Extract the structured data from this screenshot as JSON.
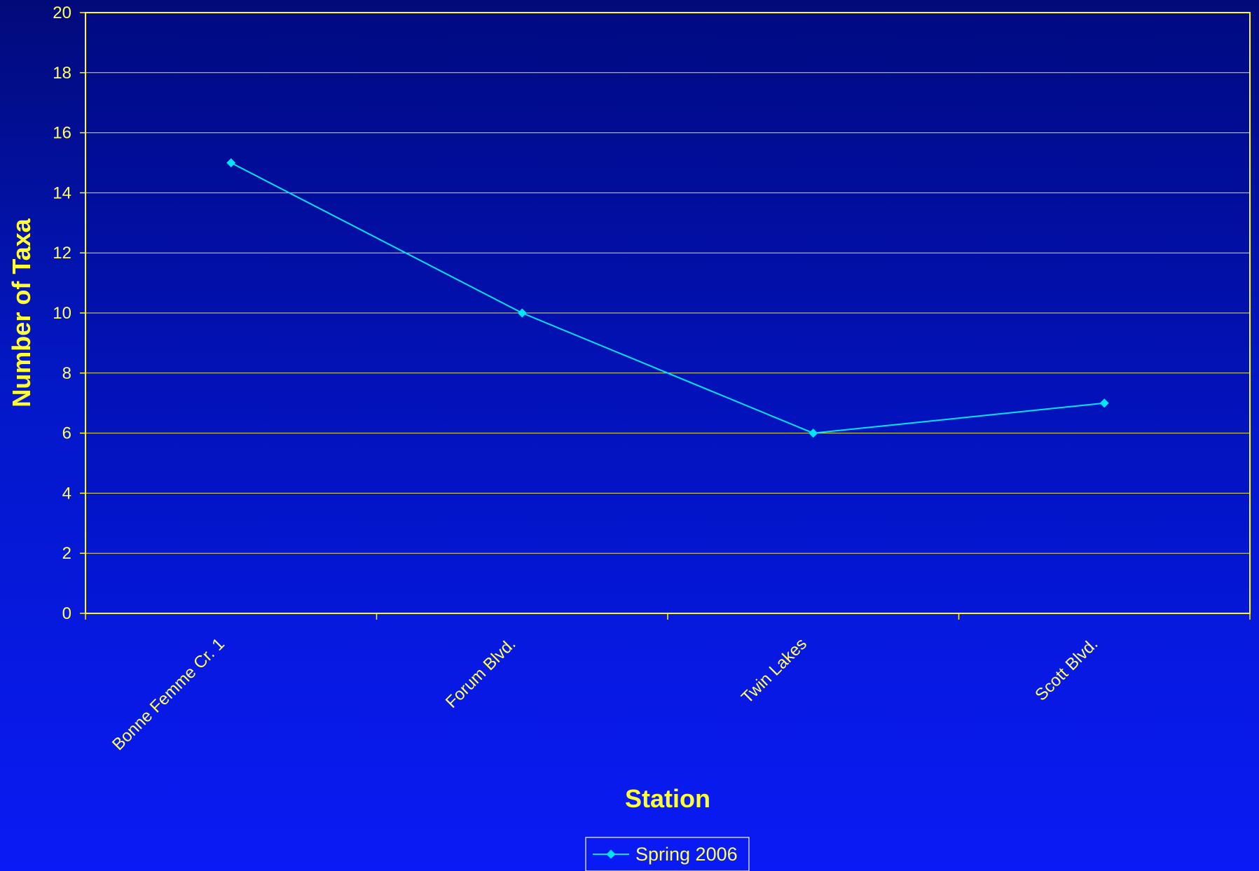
{
  "chart_data": {
    "type": "line",
    "title": "",
    "xlabel": "Station",
    "ylabel": "Number of Taxa",
    "categories": [
      "Bonne Femme Cr. 1",
      "Forum Blvd.",
      "Twin Lakes",
      "Scott Blvd."
    ],
    "series": [
      {
        "name": "Spring 2006",
        "values": [
          15,
          10,
          6,
          7
        ],
        "color": "#00e5ff",
        "marker": "diamond"
      }
    ],
    "ylim": [
      0,
      20
    ],
    "yticks": [
      0,
      2,
      4,
      6,
      8,
      10,
      12,
      14,
      16,
      18,
      20
    ],
    "grid": true,
    "legend": "bottom-center",
    "colors": {
      "grid": "#e6e64c",
      "axis": "#ffff00",
      "text": "#ffff66",
      "plot_bg_top": "#000a82",
      "plot_bg_bottom": "#0417d8"
    }
  }
}
